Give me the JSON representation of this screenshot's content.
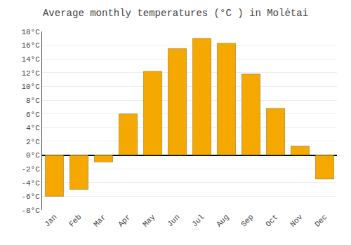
{
  "chart_data": {
    "type": "bar",
    "title": "Average monthly temperatures (°C ) in Molėtai",
    "categories": [
      "Jan",
      "Feb",
      "Mar",
      "Apr",
      "May",
      "Jun",
      "Jul",
      "Aug",
      "Sep",
      "Oct",
      "Nov",
      "Dec"
    ],
    "values": [
      -6.0,
      -5.0,
      -1.0,
      6.0,
      12.2,
      15.5,
      17.0,
      16.3,
      11.8,
      6.8,
      1.3,
      -3.5
    ],
    "color": "#F5A800",
    "ylim": [
      -8,
      18
    ],
    "yticks": [
      {
        "value": -8,
        "label": "-8°C"
      },
      {
        "value": -6,
        "label": "-6°C"
      },
      {
        "value": -4,
        "label": "-4°C"
      },
      {
        "value": -2,
        "label": "-2°C"
      },
      {
        "value": 0,
        "label": "0°C"
      },
      {
        "value": 2,
        "label": "2°C"
      },
      {
        "value": 4,
        "label": "4°C"
      },
      {
        "value": 6,
        "label": "6°C"
      },
      {
        "value": 8,
        "label": "8°C"
      },
      {
        "value": 10,
        "label": "10°C"
      },
      {
        "value": 12,
        "label": "12°C"
      },
      {
        "value": 14,
        "label": "14°C"
      },
      {
        "value": 16,
        "label": "16°C"
      },
      {
        "value": 18,
        "label": "18°C"
      }
    ],
    "grid": true
  }
}
